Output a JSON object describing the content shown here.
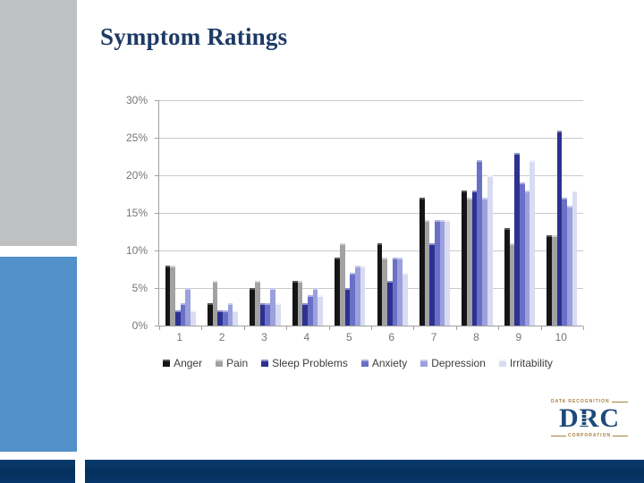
{
  "slide": {
    "title": "Symptom Ratings"
  },
  "chart_data": {
    "type": "bar",
    "title": "",
    "xlabel": "",
    "ylabel": "",
    "categories": [
      "1",
      "2",
      "3",
      "4",
      "5",
      "6",
      "7",
      "8",
      "9",
      "10"
    ],
    "series": [
      {
        "name": "Anger",
        "color": "#151515",
        "cap": "#555555",
        "values": [
          8,
          3,
          5,
          6,
          9,
          11,
          17,
          18,
          13,
          12
        ]
      },
      {
        "name": "Pain",
        "color": "#a2a2a2",
        "cap": "#d2d2d2",
        "values": [
          8,
          6,
          6,
          6,
          11,
          9,
          14,
          17,
          11,
          12
        ]
      },
      {
        "name": "Sleep Problems",
        "color": "#2d3190",
        "cap": "#8a8ec9",
        "values": [
          2,
          2,
          3,
          3,
          5,
          6,
          11,
          18,
          23,
          26
        ]
      },
      {
        "name": "Anxiety",
        "color": "#6a70c7",
        "cap": "#aab0e2",
        "values": [
          3,
          2,
          3,
          4,
          7,
          9,
          14,
          22,
          19,
          17
        ]
      },
      {
        "name": "Depression",
        "color": "#9ba1dc",
        "cap": "#c9cdee",
        "values": [
          5,
          3,
          5,
          5,
          8,
          9,
          14,
          17,
          18,
          16
        ]
      },
      {
        "name": "Irritability",
        "color": "#d9dbf1",
        "cap": "#f0f1fa",
        "values": [
          2,
          2,
          3,
          4,
          8,
          7,
          14,
          20,
          22,
          18
        ]
      }
    ],
    "ylim": [
      0,
      30
    ],
    "ytick_step": 5,
    "ytick_labels": [
      "0%",
      "5%",
      "10%",
      "15%",
      "20%",
      "25%",
      "30%"
    ],
    "grid": "horizontal",
    "legend_position": "bottom"
  },
  "logo": {
    "top_text": "DATA RECOGNITION",
    "main_text": "DRC",
    "bottom_text": "CORPORATION",
    "navy": "#1d4a7a",
    "gold": "#a5803f"
  },
  "decor": {
    "gray_rect_color": "#bec0c2",
    "blue_rect_color": "#5290c9",
    "bottom_bar_color": "#04305e"
  }
}
